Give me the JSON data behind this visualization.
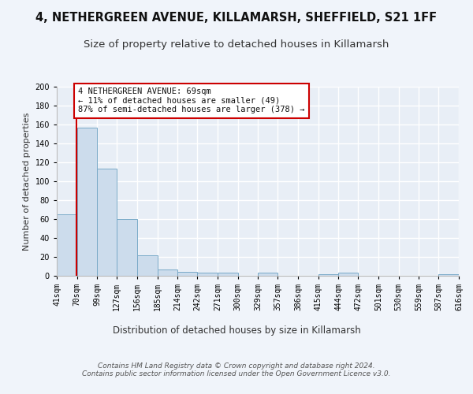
{
  "title1": "4, NETHERGREEN AVENUE, KILLAMARSH, SHEFFIELD, S21 1FF",
  "title2": "Size of property relative to detached houses in Killamarsh",
  "xlabel": "Distribution of detached houses by size in Killamarsh",
  "ylabel": "Number of detached properties",
  "bin_edges": [
    41,
    70,
    99,
    127,
    156,
    185,
    214,
    242,
    271,
    300,
    329,
    357,
    386,
    415,
    444,
    472,
    501,
    530,
    559,
    587,
    616
  ],
  "bar_heights": [
    65,
    157,
    113,
    60,
    22,
    7,
    4,
    3,
    3,
    0,
    3,
    0,
    0,
    2,
    3,
    0,
    0,
    0,
    0,
    2
  ],
  "bar_color": "#ccdcec",
  "bar_edge_color": "#7aaac8",
  "property_size": 69,
  "property_line_color": "#cc0000",
  "annotation_text": "4 NETHERGREEN AVENUE: 69sqm\n← 11% of detached houses are smaller (49)\n87% of semi-detached houses are larger (378) →",
  "annotation_box_color": "#ffffff",
  "annotation_border_color": "#cc0000",
  "ylim": [
    0,
    200
  ],
  "yticks": [
    0,
    20,
    40,
    60,
    80,
    100,
    120,
    140,
    160,
    180,
    200
  ],
  "footer_text": "Contains HM Land Registry data © Crown copyright and database right 2024.\nContains public sector information licensed under the Open Government Licence v3.0.",
  "bg_color": "#e8eef6",
  "fig_bg_color": "#f0f4fa",
  "grid_color": "#ffffff",
  "title1_fontsize": 10.5,
  "title2_fontsize": 9.5,
  "xlabel_fontsize": 8.5,
  "ylabel_fontsize": 8,
  "tick_fontsize": 7,
  "annotation_fontsize": 7.5,
  "footer_fontsize": 6.5
}
